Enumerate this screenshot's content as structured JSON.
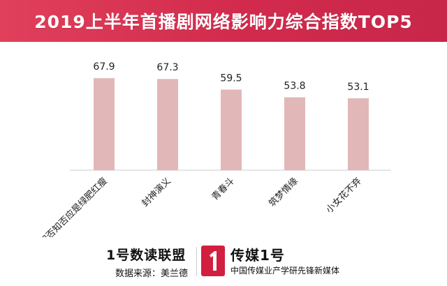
{
  "title": "2019上半年首播剧网络影响力综合指数TOP5",
  "colors": {
    "bar": "#e2b7b8",
    "title_bg": "#d22a4c",
    "axis": "#cccccc",
    "logo": "#d21f3f"
  },
  "chart_data": {
    "type": "bar",
    "categories": [
      "知否知否应是绿肥红瘦",
      "封神演义",
      "青春斗",
      "筑梦情缘",
      "小女花不弃"
    ],
    "values": [
      67.9,
      67.3,
      59.5,
      53.8,
      53.1
    ],
    "value_labels": [
      "67.9",
      "67.3",
      "59.5",
      "53.8",
      "53.1"
    ],
    "ylim": [
      0,
      70
    ],
    "grid": false,
    "legend": "none",
    "tick_label_rotation": "-45"
  },
  "footer": {
    "brand_left": "1号数读联盟",
    "source": "数据来源：美兰德",
    "logo_icon": "chuanmei-logo-icon",
    "brand_right": "传媒1号",
    "slogan": "中国传媒业产学研先锋新媒体"
  }
}
